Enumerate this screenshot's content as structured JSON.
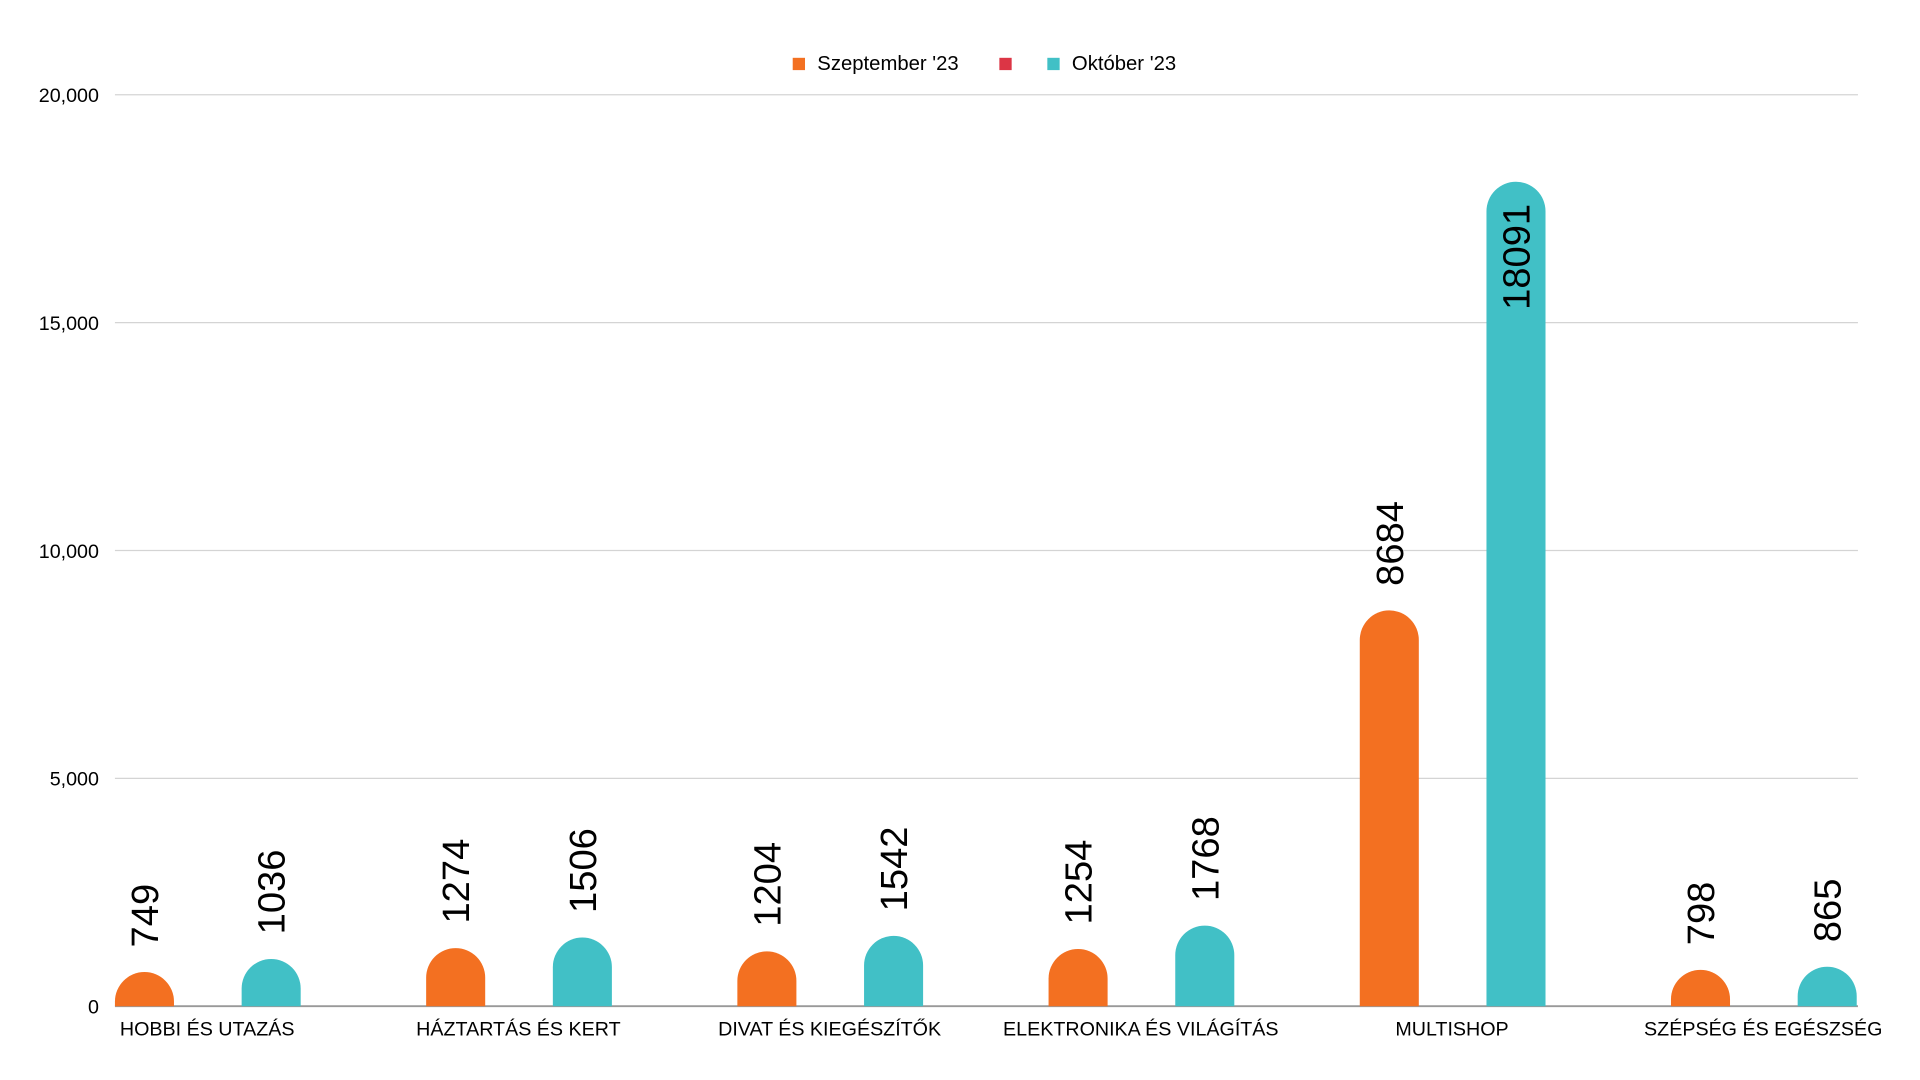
{
  "chart_data": {
    "type": "bar",
    "title": "",
    "xlabel": "",
    "ylabel": "",
    "ylim": [
      0,
      20000
    ],
    "yticks": [
      0,
      5000,
      10000,
      15000,
      20000
    ],
    "ytick_labels": [
      "0",
      "5,000",
      "10,000",
      "15,000",
      "20,000"
    ],
    "grid": true,
    "legend_position": "top-center",
    "categories": [
      "HOBBI ÉS UTAZÁS",
      "HÁZTARTÁS ÉS KERT",
      "DIVAT ÉS KIEGÉSZÍTŐK",
      "ELEKTRONIKA ÉS VILÁGÍTÁS",
      "MULTISHOP",
      "SZÉPSÉG ÉS EGÉSZSÉG"
    ],
    "legend": [
      {
        "name": "Szeptember '23",
        "color": "#F37021"
      },
      {
        "name": "",
        "color": "#DC3545"
      },
      {
        "name": "Október '23",
        "color": "#41C0C6"
      }
    ],
    "series": [
      {
        "name": "Szeptember '23",
        "color": "#F37021",
        "values": [
          749,
          1274,
          1204,
          1254,
          8684,
          798
        ]
      },
      {
        "name": "Október '23",
        "color": "#41C0C6",
        "values": [
          1036,
          1506,
          1542,
          1768,
          18091,
          865
        ]
      }
    ]
  }
}
